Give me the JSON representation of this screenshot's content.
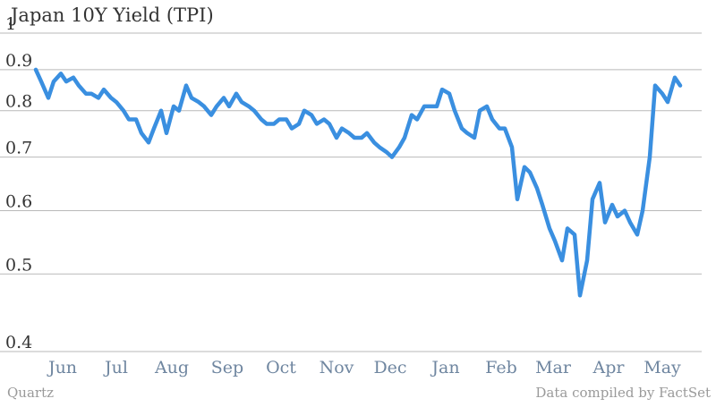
{
  "chart_data": {
    "type": "line",
    "title": "Japan 10Y Yield (TPI)",
    "xlabel": "",
    "ylabel": "",
    "scale": "log",
    "ylim": [
      0.4,
      1
    ],
    "yticks": [
      0.4,
      0.5,
      0.6,
      0.7,
      0.8,
      0.9,
      1
    ],
    "ytick_labels": [
      "0.4",
      "0.5",
      "0.6",
      "0.7",
      "0.8",
      "0.9",
      "1"
    ],
    "grid": true,
    "xlim": [
      "2015-05-18",
      "2016-05-24"
    ],
    "xtick_labels": [
      {
        "label": "Jun",
        "date": "2015-06-01"
      },
      {
        "label": "Jul",
        "date": "2015-07-01"
      },
      {
        "label": "Aug",
        "date": "2015-08-01"
      },
      {
        "label": "Sep",
        "date": "2015-09-01"
      },
      {
        "label": "Oct",
        "date": "2015-10-01"
      },
      {
        "label": "Nov",
        "date": "2015-11-01"
      },
      {
        "label": "Dec",
        "date": "2015-12-01"
      },
      {
        "label": "Jan",
        "date": "2016-01-01"
      },
      {
        "label": "Feb",
        "date": "2016-02-01"
      },
      {
        "label": "Mar",
        "date": "2016-03-01"
      },
      {
        "label": "Apr",
        "date": "2016-04-01"
      },
      {
        "label": "May",
        "date": "2016-05-01"
      }
    ],
    "series": [
      {
        "color": "#3a8fe0",
        "points": [
          [
            "2015-05-18",
            0.9
          ],
          [
            "2015-05-21",
            0.87
          ],
          [
            "2015-05-25",
            0.83
          ],
          [
            "2015-05-28",
            0.87
          ],
          [
            "2015-06-01",
            0.89
          ],
          [
            "2015-06-04",
            0.87
          ],
          [
            "2015-06-08",
            0.88
          ],
          [
            "2015-06-11",
            0.86
          ],
          [
            "2015-06-15",
            0.84
          ],
          [
            "2015-06-18",
            0.84
          ],
          [
            "2015-06-22",
            0.83
          ],
          [
            "2015-06-25",
            0.85
          ],
          [
            "2015-06-29",
            0.83
          ],
          [
            "2015-07-02",
            0.82
          ],
          [
            "2015-07-06",
            0.8
          ],
          [
            "2015-07-09",
            0.78
          ],
          [
            "2015-07-13",
            0.78
          ],
          [
            "2015-07-16",
            0.75
          ],
          [
            "2015-07-20",
            0.73
          ],
          [
            "2015-07-23",
            0.76
          ],
          [
            "2015-07-27",
            0.8
          ],
          [
            "2015-07-30",
            0.75
          ],
          [
            "2015-08-03",
            0.81
          ],
          [
            "2015-08-06",
            0.8
          ],
          [
            "2015-08-10",
            0.86
          ],
          [
            "2015-08-13",
            0.83
          ],
          [
            "2015-08-17",
            0.82
          ],
          [
            "2015-08-20",
            0.81
          ],
          [
            "2015-08-24",
            0.79
          ],
          [
            "2015-08-27",
            0.81
          ],
          [
            "2015-08-31",
            0.83
          ],
          [
            "2015-09-03",
            0.81
          ],
          [
            "2015-09-07",
            0.84
          ],
          [
            "2015-09-10",
            0.82
          ],
          [
            "2015-09-14",
            0.81
          ],
          [
            "2015-09-17",
            0.8
          ],
          [
            "2015-09-21",
            0.78
          ],
          [
            "2015-09-24",
            0.77
          ],
          [
            "2015-09-28",
            0.77
          ],
          [
            "2015-10-01",
            0.78
          ],
          [
            "2015-10-05",
            0.78
          ],
          [
            "2015-10-08",
            0.76
          ],
          [
            "2015-10-12",
            0.77
          ],
          [
            "2015-10-15",
            0.8
          ],
          [
            "2015-10-19",
            0.79
          ],
          [
            "2015-10-22",
            0.77
          ],
          [
            "2015-10-26",
            0.78
          ],
          [
            "2015-10-29",
            0.77
          ],
          [
            "2015-11-02",
            0.74
          ],
          [
            "2015-11-05",
            0.76
          ],
          [
            "2015-11-09",
            0.75
          ],
          [
            "2015-11-12",
            0.74
          ],
          [
            "2015-11-16",
            0.74
          ],
          [
            "2015-11-19",
            0.75
          ],
          [
            "2015-11-23",
            0.73
          ],
          [
            "2015-11-26",
            0.72
          ],
          [
            "2015-11-30",
            0.71
          ],
          [
            "2015-12-03",
            0.7
          ],
          [
            "2015-12-07",
            0.72
          ],
          [
            "2015-12-10",
            0.74
          ],
          [
            "2015-12-14",
            0.79
          ],
          [
            "2015-12-17",
            0.78
          ],
          [
            "2015-12-21",
            0.81
          ],
          [
            "2015-12-24",
            0.81
          ],
          [
            "2015-12-28",
            0.81
          ],
          [
            "2015-12-31",
            0.85
          ],
          [
            "2016-01-04",
            0.84
          ],
          [
            "2016-01-07",
            0.8
          ],
          [
            "2016-01-11",
            0.76
          ],
          [
            "2016-01-14",
            0.75
          ],
          [
            "2016-01-18",
            0.74
          ],
          [
            "2016-01-21",
            0.8
          ],
          [
            "2016-01-25",
            0.81
          ],
          [
            "2016-01-28",
            0.78
          ],
          [
            "2016-02-01",
            0.76
          ],
          [
            "2016-02-04",
            0.76
          ],
          [
            "2016-02-08",
            0.72
          ],
          [
            "2016-02-11",
            0.62
          ],
          [
            "2016-02-15",
            0.68
          ],
          [
            "2016-02-18",
            0.67
          ],
          [
            "2016-02-22",
            0.64
          ],
          [
            "2016-02-25",
            0.61
          ],
          [
            "2016-02-29",
            0.57
          ],
          [
            "2016-03-03",
            0.55
          ],
          [
            "2016-03-07",
            0.52
          ],
          [
            "2016-03-10",
            0.57
          ],
          [
            "2016-03-14",
            0.56
          ],
          [
            "2016-03-17",
            0.47
          ],
          [
            "2016-03-21",
            0.52
          ],
          [
            "2016-03-24",
            0.62
          ],
          [
            "2016-03-28",
            0.65
          ],
          [
            "2016-03-31",
            0.58
          ],
          [
            "2016-04-04",
            0.61
          ],
          [
            "2016-04-07",
            0.59
          ],
          [
            "2016-04-11",
            0.6
          ],
          [
            "2016-04-14",
            0.58
          ],
          [
            "2016-04-18",
            0.56
          ],
          [
            "2016-04-21",
            0.6
          ],
          [
            "2016-04-25",
            0.7
          ],
          [
            "2016-04-28",
            0.86
          ],
          [
            "2016-05-02",
            0.84
          ],
          [
            "2016-05-05",
            0.82
          ],
          [
            "2016-05-09",
            0.88
          ],
          [
            "2016-05-12",
            0.86
          ]
        ]
      }
    ]
  },
  "footer": {
    "source_left": "Quartz",
    "source_right": "Data compiled by FactSet"
  }
}
